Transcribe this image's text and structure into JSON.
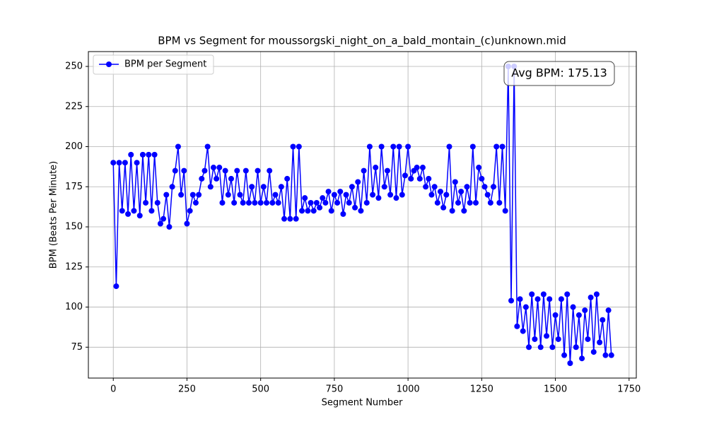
{
  "chart_data": {
    "type": "line",
    "title": "BPM vs Segment for moussorgski_night_on_a_bald_montain_(c)unknown.mid",
    "x_label": "Segment Number",
    "y_label": "BPM (Beats Per Minute)",
    "annotation": "Avg BPM: 175.13",
    "legend": "upper left",
    "grid": true,
    "xlim": [
      -84.5,
      1774.5
    ],
    "ylim": [
      55.75,
      259.25
    ],
    "xticks": [
      0,
      250,
      500,
      750,
      1000,
      1250,
      1500,
      1750
    ],
    "yticks": [
      75,
      100,
      125,
      150,
      175,
      200,
      225,
      250
    ],
    "x": [
      0,
      10,
      20,
      30,
      40,
      50,
      60,
      70,
      80,
      90,
      100,
      110,
      120,
      130,
      140,
      150,
      160,
      170,
      180,
      190,
      200,
      210,
      220,
      230,
      240,
      250,
      260,
      270,
      280,
      290,
      300,
      310,
      320,
      330,
      340,
      350,
      360,
      370,
      380,
      390,
      400,
      410,
      420,
      430,
      440,
      450,
      460,
      470,
      480,
      490,
      500,
      510,
      520,
      530,
      540,
      550,
      560,
      570,
      580,
      590,
      600,
      610,
      620,
      630,
      640,
      650,
      660,
      670,
      680,
      690,
      700,
      710,
      720,
      730,
      740,
      750,
      760,
      770,
      780,
      790,
      800,
      810,
      820,
      830,
      840,
      850,
      860,
      870,
      880,
      890,
      900,
      910,
      920,
      930,
      940,
      950,
      960,
      970,
      980,
      990,
      1000,
      1010,
      1020,
      1030,
      1040,
      1050,
      1060,
      1070,
      1080,
      1090,
      1100,
      1110,
      1120,
      1130,
      1140,
      1150,
      1160,
      1170,
      1180,
      1190,
      1200,
      1210,
      1220,
      1230,
      1240,
      1250,
      1260,
      1270,
      1280,
      1290,
      1300,
      1310,
      1320,
      1330,
      1340,
      1350,
      1360,
      1370,
      1380,
      1390,
      1400,
      1410,
      1420,
      1430,
      1440,
      1450,
      1460,
      1470,
      1480,
      1490,
      1500,
      1510,
      1520,
      1530,
      1540,
      1550,
      1560,
      1570,
      1580,
      1590,
      1600,
      1610,
      1620,
      1630,
      1640,
      1650,
      1660,
      1670,
      1680,
      1690
    ],
    "series": [
      {
        "name": "BPM per Segment",
        "color": "#0000ff",
        "values": [
          190,
          113,
          190,
          160,
          190,
          158,
          195,
          160,
          190,
          157,
          195,
          165,
          195,
          160,
          195,
          165,
          152,
          155,
          170,
          150,
          175,
          185,
          200,
          170,
          185,
          152,
          160,
          170,
          165,
          170,
          180,
          185,
          200,
          175,
          187,
          180,
          187,
          165,
          185,
          170,
          180,
          165,
          185,
          170,
          165,
          185,
          165,
          175,
          165,
          185,
          165,
          175,
          165,
          185,
          165,
          170,
          165,
          175,
          155,
          180,
          155,
          200,
          155,
          200,
          160,
          168,
          160,
          165,
          160,
          165,
          162,
          168,
          165,
          172,
          160,
          170,
          165,
          172,
          158,
          170,
          165,
          175,
          162,
          178,
          160,
          185,
          165,
          200,
          170,
          187,
          168,
          200,
          175,
          185,
          170,
          200,
          168,
          200,
          170,
          182,
          200,
          180,
          185,
          187,
          180,
          187,
          175,
          180,
          170,
          175,
          165,
          172,
          162,
          170,
          200,
          160,
          178,
          165,
          172,
          160,
          175,
          165,
          200,
          165,
          187,
          180,
          175,
          170,
          165,
          175,
          200,
          165,
          200,
          160,
          250,
          104,
          250,
          88,
          105,
          85,
          100,
          75,
          108,
          80,
          105,
          75,
          108,
          82,
          105,
          75,
          95,
          80,
          105,
          70,
          108,
          65,
          100,
          75,
          95,
          68,
          98,
          80,
          106,
          72,
          108,
          78,
          92,
          70,
          98,
          70
        ]
      }
    ]
  }
}
